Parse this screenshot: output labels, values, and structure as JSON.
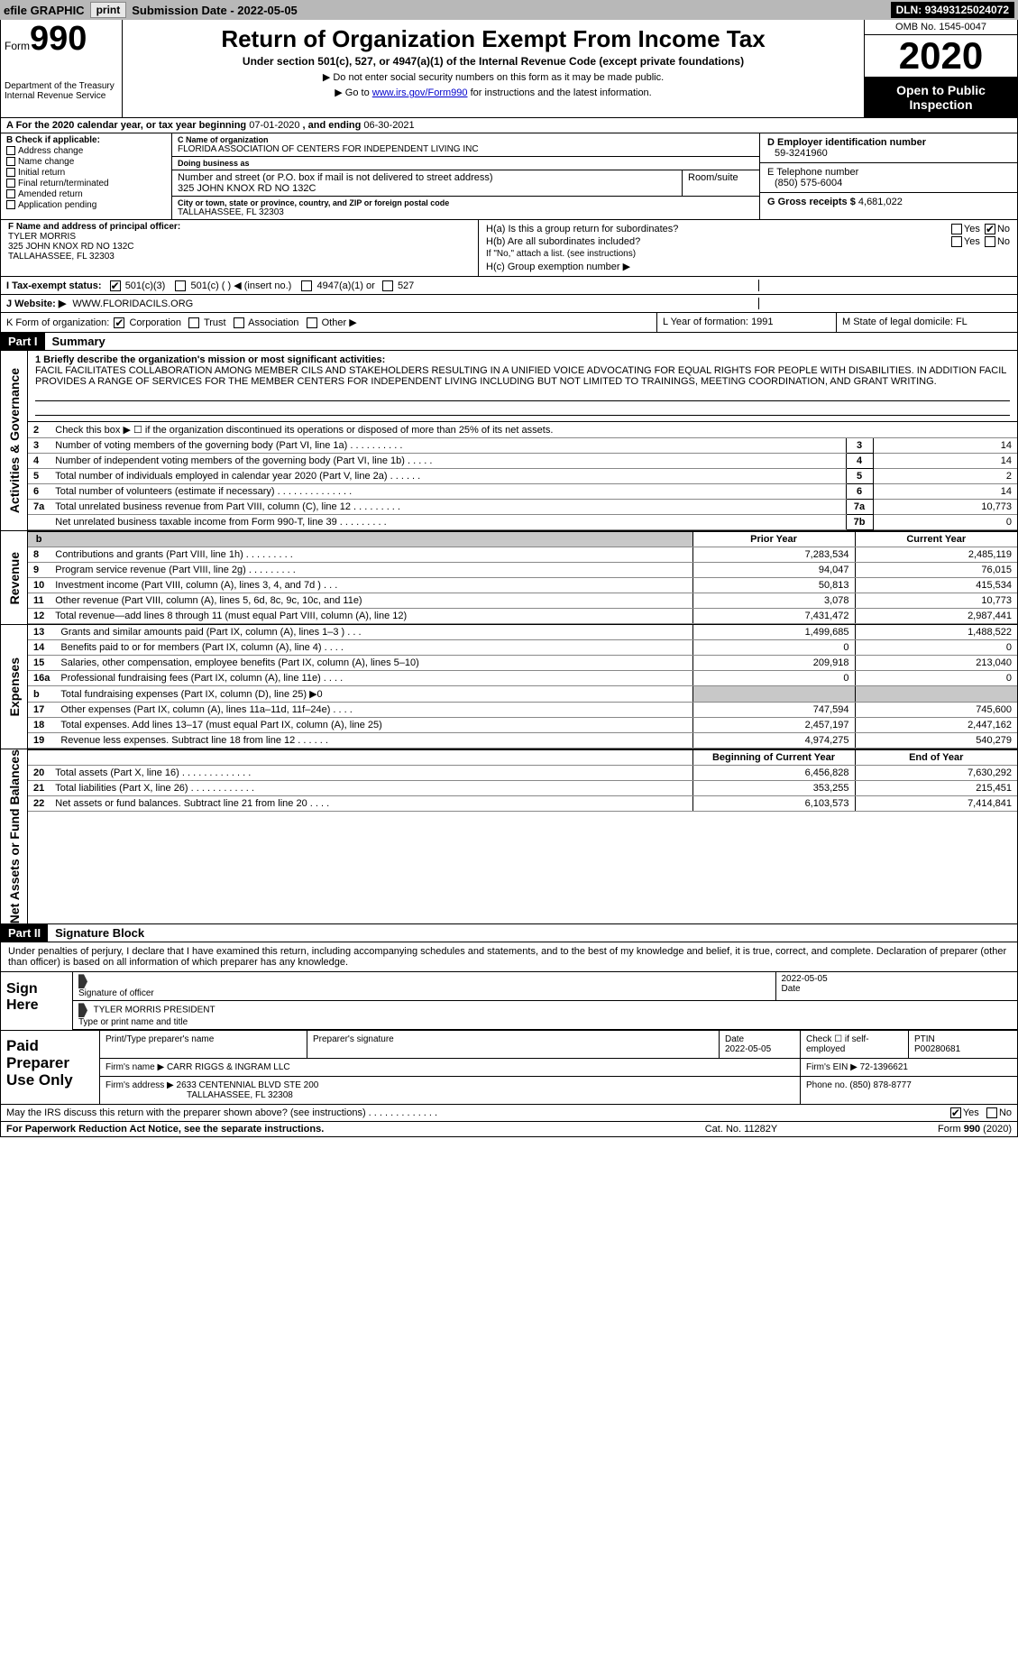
{
  "topbar": {
    "efile_label": "efile GRAPHIC",
    "print_btn": "print",
    "sub_date_label": "Submission Date - ",
    "sub_date": "2022-05-05",
    "dln_label": "DLN: ",
    "dln": "93493125024072"
  },
  "mh": {
    "form_word": "Form",
    "form_num": "990",
    "dept1": "Department of the Treasury",
    "dept2": "Internal Revenue Service",
    "title": "Return of Organization Exempt From Income Tax",
    "sub": "Under section 501(c), 527, or 4947(a)(1) of the Internal Revenue Code (except private foundations)",
    "note1": "▶ Do not enter social security numbers on this form as it may be made public.",
    "note2_pre": "▶ Go to ",
    "note2_link": "www.irs.gov/Form990",
    "note2_post": " for instructions and the latest information.",
    "omb": "OMB No. 1545-0047",
    "year": "2020",
    "pub": "Open to Public Inspection"
  },
  "cal": {
    "lbl_a": "A For the 2020 calendar year, or tax year beginning ",
    "begin": "07-01-2020",
    "mid": " , and ending ",
    "end": "06-30-2021"
  },
  "B": {
    "label": "B Check if applicable:",
    "opts": [
      "Address change",
      "Name change",
      "Initial return",
      "Final return/terminated",
      "Amended return",
      "Application pending"
    ]
  },
  "C": {
    "name_lbl": "C Name of organization",
    "name": "FLORIDA ASSOCIATION OF CENTERS FOR INDEPENDENT LIVING INC",
    "dba_lbl": "Doing business as",
    "addr_lbl": "Number and street (or P.O. box if mail is not delivered to street address)",
    "room_lbl": "Room/suite",
    "addr": "325 JOHN KNOX RD NO 132C",
    "city_lbl": "City or town, state or province, country, and ZIP or foreign postal code",
    "city": "TALLAHASSEE, FL  32303"
  },
  "D": {
    "lbl": "D Employer identification number",
    "val": "59-3241960"
  },
  "E": {
    "lbl": "E Telephone number",
    "val": "(850) 575-6004"
  },
  "G": {
    "lbl": "G Gross receipts $",
    "val": "4,681,022"
  },
  "F": {
    "lbl": "F  Name and address of principal officer:",
    "name": "TYLER MORRIS",
    "addr1": "325 JOHN KNOX RD NO 132C",
    "addr2": "TALLAHASSEE, FL  32303"
  },
  "H": {
    "a_lbl": "H(a)  Is this a group return for subordinates?",
    "b_lbl": "H(b)  Are all subordinates included?",
    "b_note": "If \"No,\" attach a list. (see instructions)",
    "c_lbl": "H(c)  Group exemption number ▶",
    "yes": "Yes",
    "no": "No"
  },
  "I": {
    "lbl": "I  Tax-exempt status:",
    "o1": "501(c)(3)",
    "o2": "501(c) (   ) ◀ (insert no.)",
    "o3": "4947(a)(1) or",
    "o4": "527"
  },
  "J": {
    "lbl": "J  Website: ▶",
    "val": "WWW.FLORIDACILS.ORG"
  },
  "K": {
    "lbl": "K Form of organization:",
    "o1": "Corporation",
    "o2": "Trust",
    "o3": "Association",
    "o4": "Other ▶"
  },
  "L": {
    "lbl": "L Year of formation:",
    "val": "1991"
  },
  "M": {
    "lbl": "M State of legal domicile:",
    "val": "FL"
  },
  "parts": {
    "p1_num": "Part I",
    "p1_title": "Summary",
    "p2_num": "Part II",
    "p2_title": "Signature Block"
  },
  "vtabs": {
    "ag": "Activities & Governance",
    "rev": "Revenue",
    "exp": "Expenses",
    "nafb": "Net Assets or Fund Balances"
  },
  "mission": {
    "lbl": "1  Briefly describe the organization's mission or most significant activities:",
    "text": "FACIL FACILITATES COLLABORATION AMONG MEMBER CILS AND STAKEHOLDERS RESULTING IN A UNIFIED VOICE ADVOCATING FOR EQUAL RIGHTS FOR PEOPLE WITH DISABILITIES. IN ADDITION FACIL PROVIDES A RANGE OF SERVICES FOR THE MEMBER CENTERS FOR INDEPENDENT LIVING INCLUDING BUT NOT LIMITED TO TRAININGS, MEETING COORDINATION, AND GRANT WRITING."
  },
  "ag_rows": [
    {
      "n": "2",
      "d": "Check this box ▶ ☐ if the organization discontinued its operations or disposed of more than 25% of its net assets.",
      "box": "",
      "val": ""
    },
    {
      "n": "3",
      "d": "Number of voting members of the governing body (Part VI, line 1a)   .    .    .    .    .    .    .    .    .    .",
      "box": "3",
      "val": "14"
    },
    {
      "n": "4",
      "d": "Number of independent voting members of the governing body (Part VI, line 1b)   .    .    .    .    .",
      "box": "4",
      "val": "14"
    },
    {
      "n": "5",
      "d": "Total number of individuals employed in calendar year 2020 (Part V, line 2a)   .    .    .    .    .    .",
      "box": "5",
      "val": "2"
    },
    {
      "n": "6",
      "d": "Total number of volunteers (estimate if necessary)   .    .    .    .    .    .    .    .    .    .    .    .    .    .",
      "box": "6",
      "val": "14"
    },
    {
      "n": "7a",
      "d": "Total unrelated business revenue from Part VIII, column (C), line 12   .    .    .    .    .    .    .    .    .",
      "box": "7a",
      "val": "10,773"
    },
    {
      "n": "",
      "d": "Net unrelated business taxable income from Form 990-T, line 39   .    .    .    .    .    .    .    .    .",
      "box": "7b",
      "val": "0"
    }
  ],
  "year_hdr": {
    "py": "Prior Year",
    "cy": "Current Year",
    "bcy": "Beginning of Current Year",
    "eoy": "End of Year"
  },
  "rev_rows": [
    {
      "n": "8",
      "d": "Contributions and grants (Part VIII, line 1h)   .    .    .    .    .    .    .    .    .",
      "py": "7,283,534",
      "cy": "2,485,119"
    },
    {
      "n": "9",
      "d": "Program service revenue (Part VIII, line 2g)   .    .    .    .    .    .    .    .    .",
      "py": "94,047",
      "cy": "76,015"
    },
    {
      "n": "10",
      "d": "Investment income (Part VIII, column (A), lines 3, 4, and 7d )   .    .    .",
      "py": "50,813",
      "cy": "415,534"
    },
    {
      "n": "11",
      "d": "Other revenue (Part VIII, column (A), lines 5, 6d, 8c, 9c, 10c, and 11e)",
      "py": "3,078",
      "cy": "10,773"
    },
    {
      "n": "12",
      "d": "Total revenue—add lines 8 through 11 (must equal Part VIII, column (A), line 12)",
      "py": "7,431,472",
      "cy": "2,987,441"
    }
  ],
  "exp_rows": [
    {
      "n": "13",
      "d": "Grants and similar amounts paid (Part IX, column (A), lines 1–3 )   .    .    .",
      "py": "1,499,685",
      "cy": "1,488,522"
    },
    {
      "n": "14",
      "d": "Benefits paid to or for members (Part IX, column (A), line 4)   .    .    .    .",
      "py": "0",
      "cy": "0"
    },
    {
      "n": "15",
      "d": "Salaries, other compensation, employee benefits (Part IX, column (A), lines 5–10)",
      "py": "209,918",
      "cy": "213,040"
    },
    {
      "n": "16a",
      "d": "Professional fundraising fees (Part IX, column (A), line 11e)   .    .    .    .",
      "py": "0",
      "cy": "0"
    },
    {
      "n": "b",
      "d": "Total fundraising expenses (Part IX, column (D), line 25) ▶0",
      "py": "",
      "cy": ""
    },
    {
      "n": "17",
      "d": "Other expenses (Part IX, column (A), lines 11a–11d, 11f–24e)   .    .    .    .",
      "py": "747,594",
      "cy": "745,600"
    },
    {
      "n": "18",
      "d": "Total expenses. Add lines 13–17 (must equal Part IX, column (A), line 25)",
      "py": "2,457,197",
      "cy": "2,447,162"
    },
    {
      "n": "19",
      "d": "Revenue less expenses. Subtract line 18 from line 12   .    .    .    .    .    .",
      "py": "4,974,275",
      "cy": "540,279"
    }
  ],
  "na_rows": [
    {
      "n": "20",
      "d": "Total assets (Part X, line 16)   .    .    .    .    .    .    .    .    .    .    .    .    .",
      "py": "6,456,828",
      "cy": "7,630,292"
    },
    {
      "n": "21",
      "d": "Total liabilities (Part X, line 26)   .    .    .    .    .    .    .    .    .    .    .    .",
      "py": "353,255",
      "cy": "215,451"
    },
    {
      "n": "22",
      "d": "Net assets or fund balances. Subtract line 21 from line 20   .    .    .    .",
      "py": "6,103,573",
      "cy": "7,414,841"
    }
  ],
  "sig": {
    "intro": "Under penalties of perjury, I declare that I have examined this return, including accompanying schedules and statements, and to the best of my knowledge and belief, it is true, correct, and complete. Declaration of preparer (other than officer) is based on all information of which preparer has any knowledge.",
    "sign_here": "Sign Here",
    "sig_officer": "Signature of officer",
    "date_lbl": "Date",
    "date_val": "2022-05-05",
    "name_title": "TYLER MORRIS  PRESIDENT",
    "type_name": "Type or print name and title"
  },
  "paid": {
    "lbl": "Paid Preparer Use Only",
    "col1": "Print/Type preparer's name",
    "col2": "Preparer's signature",
    "col3": "Date",
    "col3v": "2022-05-05",
    "col4": "Check ☐ if self-employed",
    "col5": "PTIN",
    "col5v": "P00280681",
    "firm_lbl": "Firm's name    ▶",
    "firm": "CARR RIGGS & INGRAM LLC",
    "ein_lbl": "Firm's EIN ▶",
    "ein": "72-1396621",
    "addr_lbl": "Firm's address ▶",
    "addr1": "2633 CENTENNIAL BLVD STE 200",
    "addr2": "TALLAHASSEE, FL  32308",
    "phone_lbl": "Phone no.",
    "phone": "(850) 878-8777"
  },
  "discuss": {
    "q": "May the IRS discuss this return with the preparer shown above? (see instructions)   .    .    .    .    .    .    .    .    .    .    .    .    .",
    "yes": "Yes",
    "no": "No"
  },
  "footer": {
    "pra": "For Paperwork Reduction Act Notice, see the separate instructions.",
    "cat": "Cat. No. 11282Y",
    "form": "Form 990 (2020)"
  },
  "colors": {
    "topbar_bg": "#b8b8b8",
    "black": "#000000",
    "link": "#0000cc",
    "gray_cell": "#c8c8c8"
  }
}
